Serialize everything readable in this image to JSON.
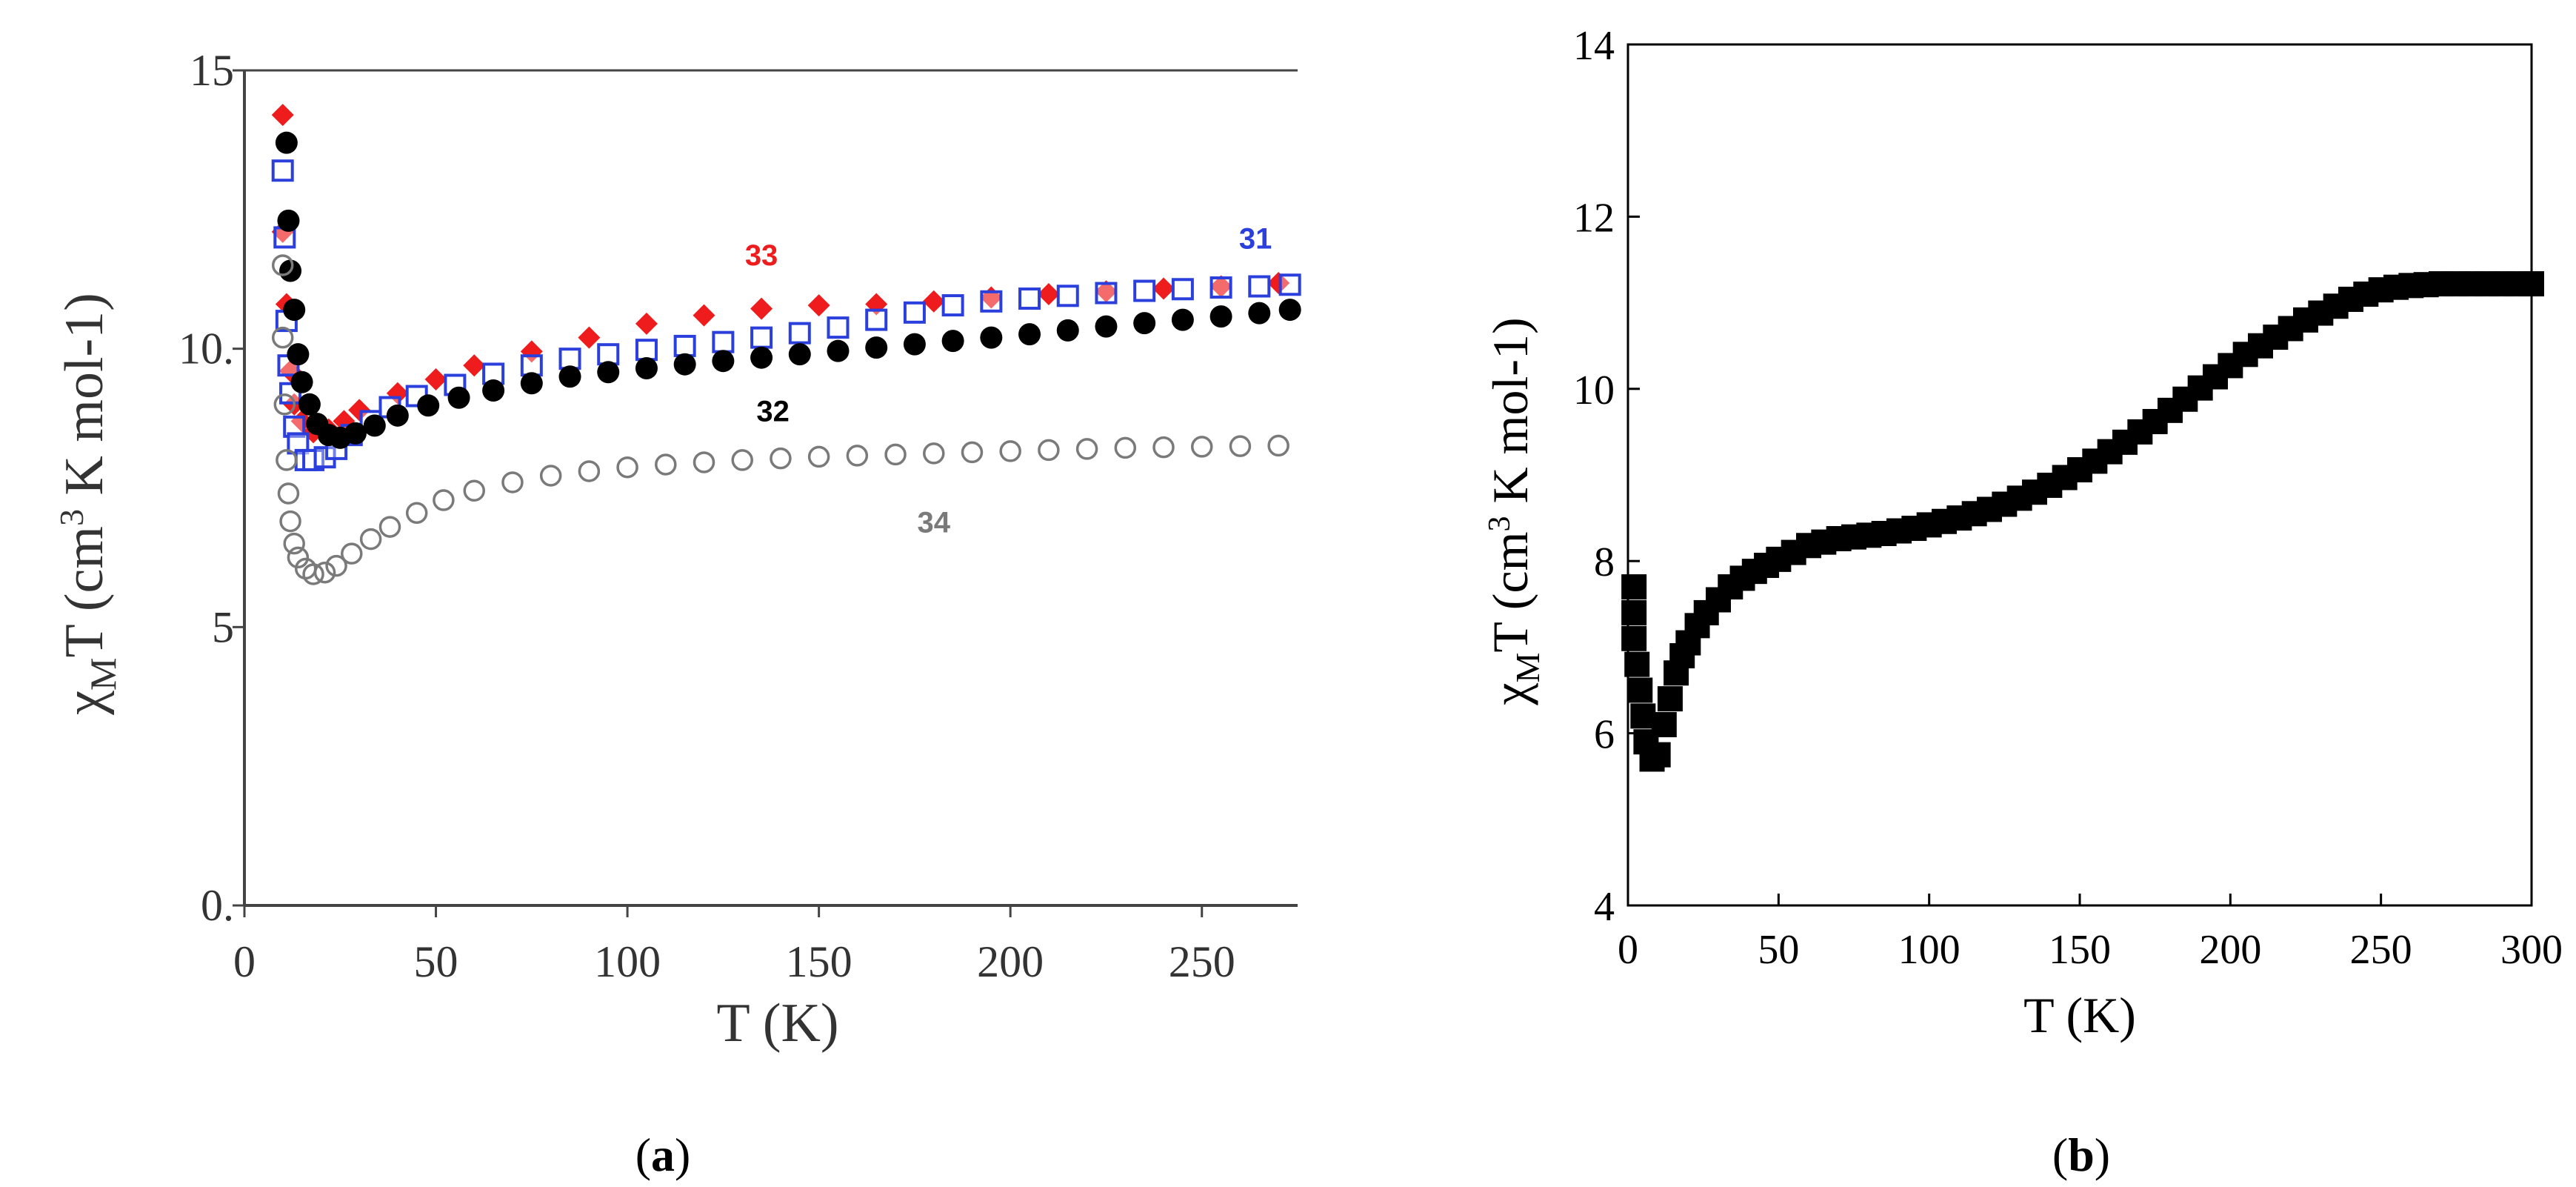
{
  "chart_data": [
    {
      "panel": "a",
      "type": "scatter",
      "caption_open": "(",
      "caption_letter": "a",
      "caption_close": ")",
      "xlabel": "T (K)",
      "ylabel_chi": "χ",
      "ylabel_sub": "M",
      "ylabel_T": "T (cm",
      "ylabel_sup": "3",
      "ylabel_rest": " K mol-1)",
      "xlim": [
        0,
        275
      ],
      "ylim": [
        0,
        15
      ],
      "xticks": [
        0,
        50,
        100,
        150,
        200,
        250
      ],
      "yticks": [
        0,
        5,
        10,
        15
      ],
      "xtick_labels": [
        "0",
        "50",
        "100",
        "150",
        "200",
        "250"
      ],
      "ytick_labels": [
        "0.",
        "5",
        "10.",
        "15"
      ],
      "series": [
        {
          "name": "33",
          "color": "#ee1c1c",
          "marker": "filled-diamond",
          "points": [
            [
              10,
              14.2
            ],
            [
              10,
              12.1
            ],
            [
              11,
              10.8
            ],
            [
              12,
              9.6
            ],
            [
              13,
              9.0
            ],
            [
              15,
              8.7
            ],
            [
              18,
              8.5
            ],
            [
              22,
              8.55
            ],
            [
              26,
              8.7
            ],
            [
              30,
              8.9
            ],
            [
              40,
              9.2
            ],
            [
              50,
              9.45
            ],
            [
              60,
              9.7
            ],
            [
              75,
              9.95
            ],
            [
              90,
              10.2
            ],
            [
              105,
              10.45
            ],
            [
              120,
              10.6
            ],
            [
              135,
              10.72
            ],
            [
              150,
              10.78
            ],
            [
              165,
              10.8
            ],
            [
              180,
              10.85
            ],
            [
              195,
              10.92
            ],
            [
              210,
              10.98
            ],
            [
              225,
              11.03
            ],
            [
              240,
              11.08
            ],
            [
              255,
              11.12
            ],
            [
              270,
              11.18
            ]
          ]
        },
        {
          "name": "31",
          "color": "#2a3fdc",
          "marker": "open-square",
          "points": [
            [
              10,
              13.2
            ],
            [
              10.5,
              12.0
            ],
            [
              11,
              10.5
            ],
            [
              11.5,
              9.7
            ],
            [
              12,
              9.2
            ],
            [
              13,
              8.6
            ],
            [
              14,
              8.3
            ],
            [
              16,
              8.0
            ],
            [
              18,
              8.0
            ],
            [
              21,
              8.05
            ],
            [
              24,
              8.2
            ],
            [
              28,
              8.45
            ],
            [
              33,
              8.7
            ],
            [
              38,
              8.95
            ],
            [
              45,
              9.15
            ],
            [
              55,
              9.35
            ],
            [
              65,
              9.55
            ],
            [
              75,
              9.7
            ],
            [
              85,
              9.82
            ],
            [
              95,
              9.9
            ],
            [
              105,
              9.98
            ],
            [
              115,
              10.05
            ],
            [
              125,
              10.12
            ],
            [
              135,
              10.2
            ],
            [
              145,
              10.28
            ],
            [
              155,
              10.38
            ],
            [
              165,
              10.52
            ],
            [
              175,
              10.65
            ],
            [
              185,
              10.78
            ],
            [
              195,
              10.85
            ],
            [
              205,
              10.9
            ],
            [
              215,
              10.95
            ],
            [
              225,
              11.0
            ],
            [
              235,
              11.04
            ],
            [
              245,
              11.07
            ],
            [
              255,
              11.1
            ],
            [
              265,
              11.12
            ],
            [
              273,
              11.15
            ]
          ]
        },
        {
          "name": "32",
          "color": "#000000",
          "marker": "filled-circle",
          "points": [
            [
              11,
              13.7
            ],
            [
              11.5,
              12.3
            ],
            [
              12,
              11.4
            ],
            [
              13,
              10.7
            ],
            [
              14,
              9.9
            ],
            [
              15,
              9.4
            ],
            [
              17,
              9.0
            ],
            [
              19,
              8.65
            ],
            [
              22,
              8.45
            ],
            [
              25,
              8.4
            ],
            [
              29,
              8.48
            ],
            [
              34,
              8.62
            ],
            [
              40,
              8.8
            ],
            [
              48,
              8.98
            ],
            [
              56,
              9.12
            ],
            [
              65,
              9.25
            ],
            [
              75,
              9.38
            ],
            [
              85,
              9.5
            ],
            [
              95,
              9.58
            ],
            [
              105,
              9.65
            ],
            [
              115,
              9.72
            ],
            [
              125,
              9.78
            ],
            [
              135,
              9.84
            ],
            [
              145,
              9.9
            ],
            [
              155,
              9.96
            ],
            [
              165,
              10.02
            ],
            [
              175,
              10.08
            ],
            [
              185,
              10.14
            ],
            [
              195,
              10.2
            ],
            [
              205,
              10.26
            ],
            [
              215,
              10.33
            ],
            [
              225,
              10.4
            ],
            [
              235,
              10.46
            ],
            [
              245,
              10.52
            ],
            [
              255,
              10.58
            ],
            [
              265,
              10.64
            ],
            [
              273,
              10.7
            ]
          ]
        },
        {
          "name": "34",
          "color": "#7a7a7a",
          "marker": "open-circle",
          "points": [
            [
              10,
              11.5
            ],
            [
              10,
              10.2
            ],
            [
              10.5,
              9.0
            ],
            [
              11,
              8.0
            ],
            [
              11.5,
              7.4
            ],
            [
              12,
              6.9
            ],
            [
              13,
              6.5
            ],
            [
              14,
              6.25
            ],
            [
              16,
              6.05
            ],
            [
              18,
              5.95
            ],
            [
              21,
              5.98
            ],
            [
              24,
              6.1
            ],
            [
              28,
              6.32
            ],
            [
              33,
              6.58
            ],
            [
              38,
              6.8
            ],
            [
              45,
              7.05
            ],
            [
              52,
              7.28
            ],
            [
              60,
              7.45
            ],
            [
              70,
              7.6
            ],
            [
              80,
              7.72
            ],
            [
              90,
              7.8
            ],
            [
              100,
              7.87
            ],
            [
              110,
              7.92
            ],
            [
              120,
              7.96
            ],
            [
              130,
              8.0
            ],
            [
              140,
              8.03
            ],
            [
              150,
              8.06
            ],
            [
              160,
              8.08
            ],
            [
              170,
              8.1
            ],
            [
              180,
              8.12
            ],
            [
              190,
              8.14
            ],
            [
              200,
              8.16
            ],
            [
              210,
              8.18
            ],
            [
              220,
              8.2
            ],
            [
              230,
              8.22
            ],
            [
              240,
              8.23
            ],
            [
              250,
              8.24
            ],
            [
              260,
              8.25
            ],
            [
              270,
              8.26
            ]
          ]
        }
      ],
      "annotations": [
        {
          "series": "33",
          "text": "33",
          "x": 135,
          "y": 11.5
        },
        {
          "series": "31",
          "text": "31",
          "x": 264,
          "y": 11.8
        },
        {
          "series": "32",
          "text": "32",
          "x": 138,
          "y": 8.7
        },
        {
          "series": "34",
          "text": "34",
          "x": 180,
          "y": 6.7
        }
      ]
    },
    {
      "panel": "b",
      "type": "scatter",
      "caption_open": "(",
      "caption_letter": "b",
      "caption_close": ")",
      "xlabel": "T (K)",
      "ylabel_chi": "χ",
      "ylabel_sub": "M",
      "ylabel_T": "T (cm",
      "ylabel_sup": "3",
      "ylabel_rest": " K mol-1)",
      "xlim": [
        0,
        300
      ],
      "ylim": [
        4,
        14
      ],
      "xticks": [
        0,
        50,
        100,
        150,
        200,
        250,
        300
      ],
      "yticks": [
        4,
        6,
        8,
        10,
        12,
        14
      ],
      "xtick_labels": [
        "0",
        "50",
        "100",
        "150",
        "200",
        "250",
        "300"
      ],
      "ytick_labels": [
        "4",
        "6",
        "8",
        "10",
        "12",
        "14"
      ],
      "series": [
        {
          "name": "χMT",
          "color": "#000000",
          "marker": "filled-square",
          "points": [
            [
              2,
              7.7
            ],
            [
              2,
              7.4
            ],
            [
              2,
              7.1
            ],
            [
              3,
              6.8
            ],
            [
              4,
              6.5
            ],
            [
              5,
              6.2
            ],
            [
              6,
              5.9
            ],
            [
              8,
              5.7
            ],
            [
              10,
              5.75
            ],
            [
              12,
              6.1
            ],
            [
              14,
              6.4
            ],
            [
              16,
              6.7
            ],
            [
              18,
              6.9
            ],
            [
              20,
              7.05
            ],
            [
              23,
              7.25
            ],
            [
              26,
              7.4
            ],
            [
              30,
              7.55
            ],
            [
              34,
              7.7
            ],
            [
              38,
              7.8
            ],
            [
              42,
              7.88
            ],
            [
              46,
              7.95
            ],
            [
              50,
              8.02
            ],
            [
              55,
              8.1
            ],
            [
              60,
              8.18
            ],
            [
              65,
              8.22
            ],
            [
              70,
              8.26
            ],
            [
              75,
              8.28
            ],
            [
              80,
              8.3
            ],
            [
              85,
              8.32
            ],
            [
              90,
              8.35
            ],
            [
              95,
              8.38
            ],
            [
              100,
              8.42
            ],
            [
              105,
              8.46
            ],
            [
              110,
              8.5
            ],
            [
              115,
              8.55
            ],
            [
              120,
              8.6
            ],
            [
              125,
              8.66
            ],
            [
              130,
              8.73
            ],
            [
              135,
              8.8
            ],
            [
              140,
              8.88
            ],
            [
              145,
              8.97
            ],
            [
              150,
              9.06
            ],
            [
              155,
              9.16
            ],
            [
              160,
              9.27
            ],
            [
              165,
              9.38
            ],
            [
              170,
              9.5
            ],
            [
              175,
              9.62
            ],
            [
              180,
              9.75
            ],
            [
              185,
              9.88
            ],
            [
              190,
              10.01
            ],
            [
              195,
              10.14
            ],
            [
              200,
              10.27
            ],
            [
              205,
              10.4
            ],
            [
              210,
              10.5
            ],
            [
              215,
              10.6
            ],
            [
              220,
              10.7
            ],
            [
              225,
              10.8
            ],
            [
              230,
              10.88
            ],
            [
              235,
              10.96
            ],
            [
              240,
              11.04
            ],
            [
              245,
              11.1
            ],
            [
              250,
              11.15
            ],
            [
              255,
              11.18
            ],
            [
              260,
              11.2
            ],
            [
              265,
              11.21
            ],
            [
              270,
              11.22
            ],
            [
              275,
              11.22
            ],
            [
              280,
              11.22
            ],
            [
              285,
              11.22
            ],
            [
              290,
              11.22
            ],
            [
              295,
              11.22
            ],
            [
              300,
              11.22
            ]
          ]
        }
      ]
    }
  ]
}
